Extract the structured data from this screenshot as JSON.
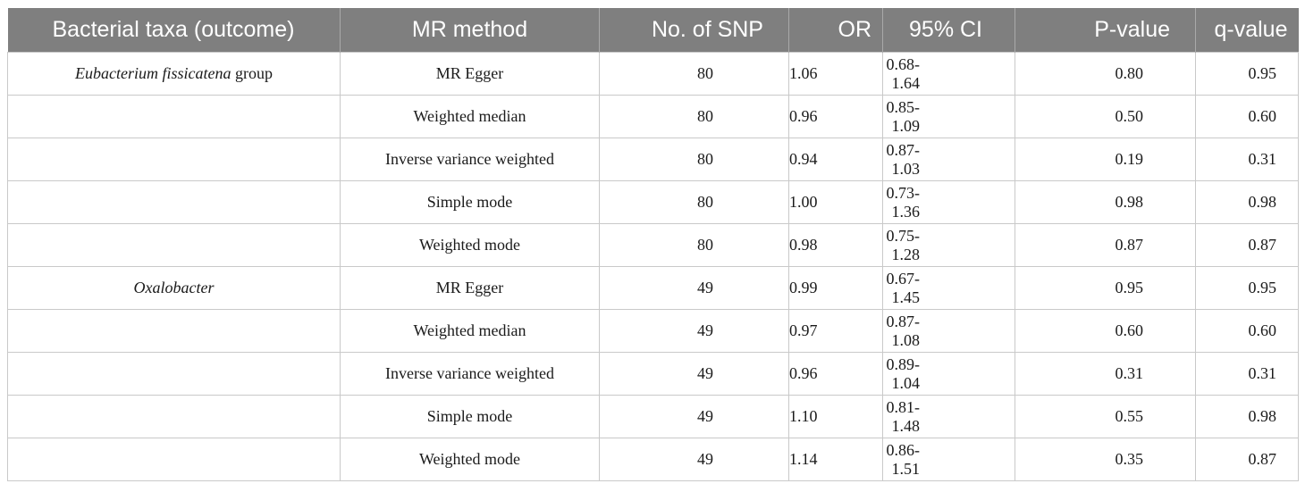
{
  "table": {
    "headers": [
      "Bacterial taxa (outcome)",
      "MR method",
      "No. of SNP",
      "OR",
      "95% CI",
      "P-value",
      "q-value"
    ],
    "rows": [
      {
        "taxa_italic": "Eubacterium fissicatena",
        "taxa_suffix": " group",
        "method": "MR Egger",
        "snp": "80",
        "or": "1.06",
        "ci": "0.68-1.64",
        "p": "0.80",
        "q": "0.95"
      },
      {
        "taxa_italic": "",
        "taxa_suffix": "",
        "method": "Weighted median",
        "snp": "80",
        "or": "0.96",
        "ci": "0.85-1.09",
        "p": "0.50",
        "q": "0.60"
      },
      {
        "taxa_italic": "",
        "taxa_suffix": "",
        "method": "Inverse variance weighted",
        "snp": "80",
        "or": "0.94",
        "ci": "0.87-1.03",
        "p": "0.19",
        "q": "0.31"
      },
      {
        "taxa_italic": "",
        "taxa_suffix": "",
        "method": "Simple mode",
        "snp": "80",
        "or": "1.00",
        "ci": "0.73-1.36",
        "p": "0.98",
        "q": "0.98"
      },
      {
        "taxa_italic": "",
        "taxa_suffix": "",
        "method": "Weighted mode",
        "snp": "80",
        "or": "0.98",
        "ci": "0.75-1.28",
        "p": "0.87",
        "q": "0.87"
      },
      {
        "taxa_italic": "Oxalobacter",
        "taxa_suffix": "",
        "method": "MR Egger",
        "snp": "49",
        "or": "0.99",
        "ci": "0.67-1.45",
        "p": "0.95",
        "q": "0.95"
      },
      {
        "taxa_italic": "",
        "taxa_suffix": "",
        "method": "Weighted median",
        "snp": "49",
        "or": "0.97",
        "ci": "0.87-1.08",
        "p": "0.60",
        "q": "0.60"
      },
      {
        "taxa_italic": "",
        "taxa_suffix": "",
        "method": "Inverse variance weighted",
        "snp": "49",
        "or": "0.96",
        "ci": "0.89-1.04",
        "p": "0.31",
        "q": "0.31"
      },
      {
        "taxa_italic": "",
        "taxa_suffix": "",
        "method": "Simple mode",
        "snp": "49",
        "or": "1.10",
        "ci": "0.81-1.48",
        "p": "0.55",
        "q": "0.98"
      },
      {
        "taxa_italic": "",
        "taxa_suffix": "",
        "method": "Weighted mode",
        "snp": "49",
        "or": "1.14",
        "ci": "0.86-1.51",
        "p": "0.35",
        "q": "0.87"
      }
    ]
  },
  "colors": {
    "header_bg": "#7f7f7f",
    "header_text": "#ffffff",
    "grid_line": "#c9c9c9",
    "body_text": "#1a1a1a"
  }
}
